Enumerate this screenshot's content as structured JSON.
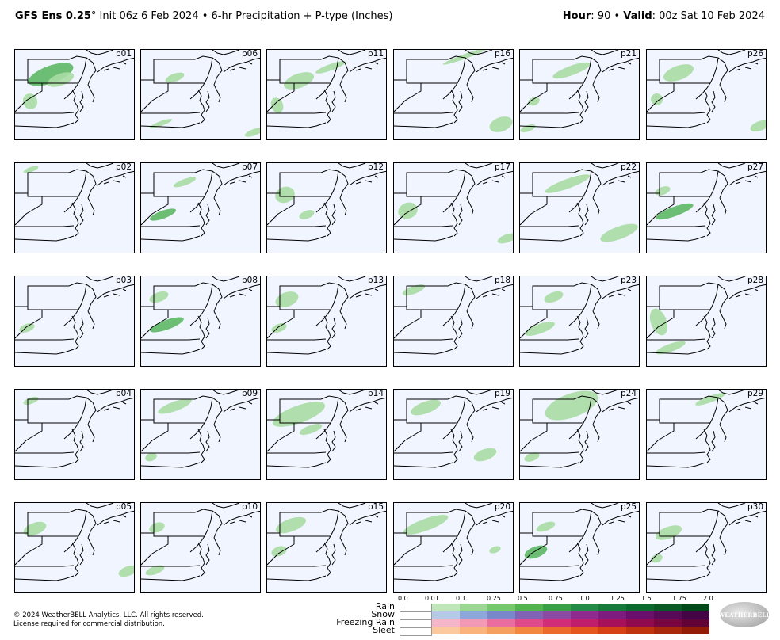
{
  "header": {
    "model": "GFS Ens 0.25",
    "degree": "°",
    "init": " Init 06z 6 Feb 2024 • 6-hr Precipitation + P-type (Inches)",
    "hour_label": "Hour",
    "hour_value": ": 90 • ",
    "valid_label": "Valid",
    "valid_value": ": 00z Sat 10 Feb 2024"
  },
  "panels": [
    {
      "label": "p01",
      "blobs": [
        [
          15,
          20,
          60,
          22,
          0.9
        ],
        [
          40,
          30,
          35,
          15,
          0.6
        ],
        [
          10,
          55,
          18,
          20,
          0.6
        ]
      ]
    },
    {
      "label": "p06",
      "blobs": [
        [
          30,
          30,
          25,
          10,
          0.5
        ],
        [
          10,
          90,
          30,
          6,
          0.5
        ],
        [
          130,
          100,
          25,
          8,
          0.4
        ]
      ]
    },
    {
      "label": "p11",
      "blobs": [
        [
          20,
          30,
          40,
          18,
          0.6
        ],
        [
          60,
          18,
          40,
          8,
          0.5
        ],
        [
          5,
          60,
          15,
          20,
          0.5
        ]
      ]
    },
    {
      "label": "p16",
      "blobs": [
        [
          60,
          5,
          60,
          6,
          0.5
        ],
        [
          120,
          85,
          30,
          18,
          0.5
        ]
      ]
    },
    {
      "label": "p21",
      "blobs": [
        [
          40,
          20,
          50,
          12,
          0.5
        ],
        [
          10,
          60,
          15,
          10,
          0.4
        ],
        [
          0,
          95,
          20,
          8,
          0.4
        ]
      ]
    },
    {
      "label": "p26",
      "blobs": [
        [
          20,
          20,
          40,
          18,
          0.5
        ],
        [
          5,
          55,
          15,
          15,
          0.5
        ],
        [
          130,
          90,
          25,
          12,
          0.5
        ]
      ]
    },
    {
      "label": "p02",
      "blobs": [
        [
          10,
          5,
          20,
          6,
          0.3
        ]
      ]
    },
    {
      "label": "p07",
      "blobs": [
        [
          10,
          60,
          35,
          10,
          0.8
        ],
        [
          40,
          20,
          30,
          8,
          0.4
        ]
      ]
    },
    {
      "label": "p12",
      "blobs": [
        [
          10,
          30,
          25,
          20,
          0.6
        ],
        [
          40,
          60,
          20,
          10,
          0.5
        ]
      ]
    },
    {
      "label": "p17",
      "blobs": [
        [
          5,
          50,
          25,
          20,
          0.5
        ],
        [
          130,
          90,
          25,
          10,
          0.5
        ]
      ]
    },
    {
      "label": "p22",
      "blobs": [
        [
          30,
          20,
          60,
          12,
          0.6
        ],
        [
          100,
          80,
          50,
          16,
          0.5
        ]
      ]
    },
    {
      "label": "p27",
      "blobs": [
        [
          10,
          55,
          50,
          12,
          0.8
        ],
        [
          10,
          30,
          20,
          10,
          0.4
        ]
      ]
    },
    {
      "label": "p03",
      "blobs": [
        [
          5,
          60,
          20,
          10,
          0.5
        ]
      ]
    },
    {
      "label": "p08",
      "blobs": [
        [
          10,
          55,
          45,
          12,
          0.8
        ],
        [
          10,
          20,
          25,
          12,
          0.4
        ]
      ]
    },
    {
      "label": "p13",
      "blobs": [
        [
          10,
          20,
          30,
          18,
          0.5
        ],
        [
          5,
          60,
          20,
          10,
          0.4
        ]
      ]
    },
    {
      "label": "p18",
      "blobs": [
        [
          10,
          12,
          30,
          10,
          0.3
        ]
      ]
    },
    {
      "label": "p23",
      "blobs": [
        [
          5,
          60,
          40,
          12,
          0.5
        ],
        [
          30,
          20,
          25,
          12,
          0.4
        ]
      ]
    },
    {
      "label": "p28",
      "blobs": [
        [
          5,
          40,
          20,
          35,
          0.6
        ],
        [
          10,
          85,
          40,
          10,
          0.5
        ]
      ]
    },
    {
      "label": "p04",
      "blobs": [
        [
          10,
          10,
          20,
          8,
          0.3
        ]
      ]
    },
    {
      "label": "p09",
      "blobs": [
        [
          20,
          15,
          45,
          12,
          0.5
        ],
        [
          5,
          80,
          15,
          10,
          0.4
        ]
      ]
    },
    {
      "label": "p14",
      "blobs": [
        [
          5,
          20,
          70,
          22,
          0.6
        ],
        [
          40,
          45,
          30,
          10,
          0.5
        ]
      ]
    },
    {
      "label": "p19",
      "blobs": [
        [
          20,
          15,
          40,
          15,
          0.5
        ],
        [
          100,
          75,
          30,
          14,
          0.5
        ]
      ]
    },
    {
      "label": "p24",
      "blobs": [
        [
          30,
          5,
          70,
          30,
          0.6
        ],
        [
          5,
          80,
          20,
          10,
          0.4
        ]
      ]
    },
    {
      "label": "p29",
      "blobs": [
        [
          60,
          8,
          40,
          8,
          0.3
        ]
      ]
    },
    {
      "label": "p05",
      "blobs": [
        [
          10,
          25,
          30,
          15,
          0.5
        ],
        [
          130,
          80,
          25,
          12,
          0.5
        ]
      ]
    },
    {
      "label": "p10",
      "blobs": [
        [
          10,
          25,
          20,
          12,
          0.4
        ],
        [
          5,
          80,
          25,
          10,
          0.4
        ]
      ]
    },
    {
      "label": "p15",
      "blobs": [
        [
          10,
          20,
          40,
          16,
          0.5
        ],
        [
          5,
          55,
          20,
          12,
          0.4
        ]
      ]
    },
    {
      "label": "p20",
      "blobs": [
        [
          10,
          20,
          60,
          15,
          0.6
        ],
        [
          120,
          55,
          15,
          8,
          0.4
        ]
      ]
    },
    {
      "label": "p25",
      "blobs": [
        [
          5,
          55,
          30,
          14,
          0.8
        ],
        [
          20,
          25,
          25,
          10,
          0.4
        ]
      ]
    },
    {
      "label": "p30",
      "blobs": [
        [
          10,
          30,
          35,
          15,
          0.5
        ],
        [
          5,
          65,
          15,
          10,
          0.4
        ]
      ]
    }
  ],
  "legend": {
    "ticks": [
      "0.0",
      "0.01",
      "0.1",
      "0.25",
      "0.5",
      "0.75",
      "1.0",
      "1.25",
      "1.5",
      "1.75",
      "2.0"
    ],
    "rows": [
      {
        "label": "Rain",
        "colors": [
          "#ffffff",
          "#bfe6b9",
          "#9bd793",
          "#76c86c",
          "#53b34f",
          "#3aa046",
          "#238b45",
          "#167a3a",
          "#0d6a2f",
          "#0a5a25",
          "#004a1a"
        ]
      },
      {
        "label": "Snow",
        "colors": [
          "#ffffff",
          "#b7c9e8",
          "#8ea7db",
          "#7a87cb",
          "#8063b4",
          "#8d4aa3",
          "#8f2b8f",
          "#7d1b7e",
          "#6a0f6c",
          "#560a57",
          "#430545"
        ]
      },
      {
        "label": "Freezing Rain",
        "colors": [
          "#ffffff",
          "#f6b6c9",
          "#f19ab6",
          "#ea6da0",
          "#e14a8a",
          "#d22e78",
          "#c01e6a",
          "#a8105a",
          "#900a4d",
          "#780641",
          "#600335"
        ]
      },
      {
        "label": "Sleet",
        "colors": [
          "#ffffff",
          "#fbc99d",
          "#f9b37b",
          "#f6a05f",
          "#f2873f",
          "#ec6b2c",
          "#e5561f",
          "#d64216",
          "#c0330f",
          "#a9270a",
          "#931c06"
        ]
      }
    ]
  },
  "copyright": {
    "line1": "© 2024 WeatherBELL Analytics, LLC. All rights reserved.",
    "line2": "License required for commercial distribution."
  },
  "logo": {
    "text": "WEATHERBELL"
  }
}
